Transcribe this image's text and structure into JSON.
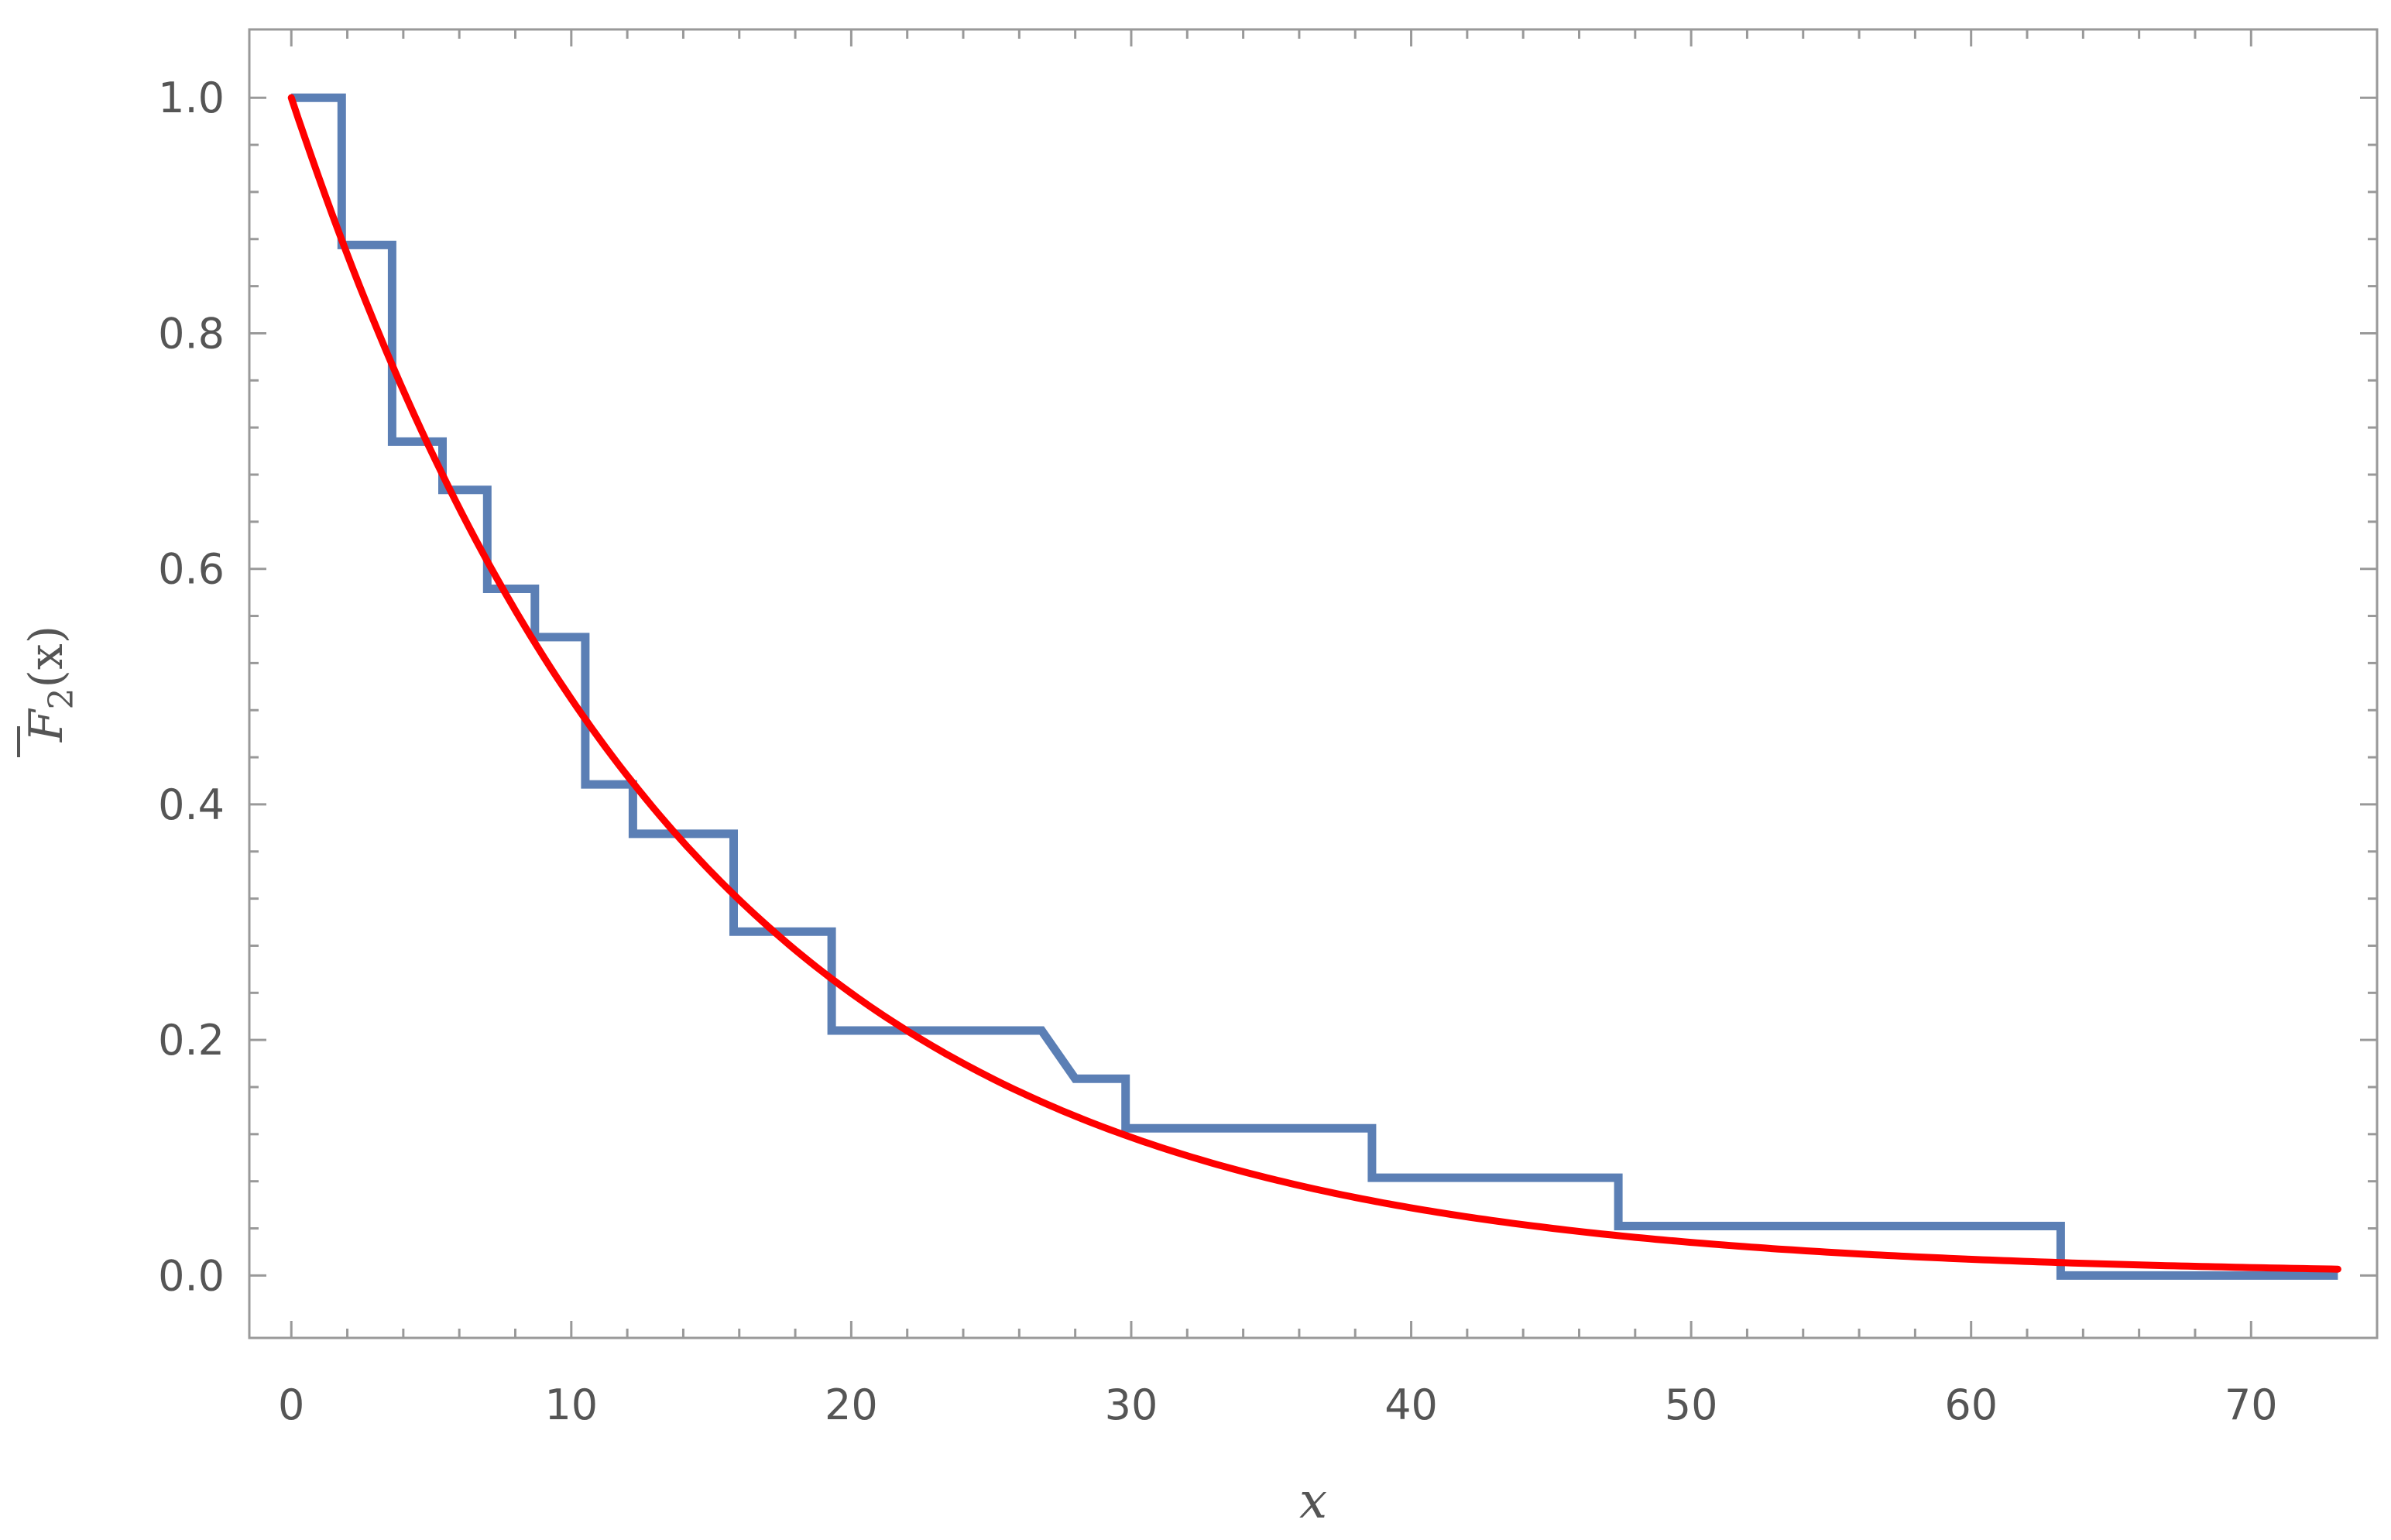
{
  "chart_data": {
    "type": "line",
    "xlabel": "x",
    "ylabel": {
      "symbol": "F",
      "subscript": "2",
      "argument": "(x)",
      "overline": true
    },
    "xlim": [
      -1.5,
      74.5
    ],
    "ylim": [
      -0.053,
      1.058
    ],
    "x_ticks": [
      0,
      10,
      20,
      30,
      40,
      50,
      60,
      70
    ],
    "x_tick_labels": [
      "0",
      "10",
      "20",
      "30",
      "40",
      "50",
      "60",
      "70"
    ],
    "y_ticks": [
      0.0,
      0.2,
      0.4,
      0.6,
      0.8,
      1.0
    ],
    "y_tick_labels": [
      "0.0",
      "0.2",
      "0.4",
      "0.6",
      "0.8",
      "1.0"
    ],
    "grid": false,
    "series": [
      {
        "style": "step",
        "color": "#5b7fb5",
        "points": [
          [
            0.0,
            1.0
          ],
          [
            1.8,
            1.0
          ],
          [
            1.8,
            0.875
          ],
          [
            3.6,
            0.875
          ],
          [
            3.6,
            0.708
          ],
          [
            5.4,
            0.708
          ],
          [
            5.4,
            0.667
          ],
          [
            7.0,
            0.667
          ],
          [
            7.0,
            0.583
          ],
          [
            8.7,
            0.583
          ],
          [
            8.7,
            0.542
          ],
          [
            10.5,
            0.542
          ],
          [
            10.5,
            0.417
          ],
          [
            12.2,
            0.417
          ],
          [
            12.2,
            0.375
          ],
          [
            15.8,
            0.375
          ],
          [
            15.8,
            0.292
          ],
          [
            19.3,
            0.292
          ],
          [
            19.3,
            0.208
          ],
          [
            26.8,
            0.208
          ],
          [
            28.0,
            0.167
          ],
          [
            29.8,
            0.167
          ],
          [
            29.8,
            0.125
          ],
          [
            38.6,
            0.125
          ],
          [
            38.6,
            0.083
          ],
          [
            47.4,
            0.083
          ],
          [
            47.4,
            0.042
          ],
          [
            63.2,
            0.042
          ],
          [
            63.2,
            0.0
          ],
          [
            73.1,
            0.0
          ]
        ]
      },
      {
        "style": "smooth",
        "color": "#ff0000",
        "function": "exp",
        "scale": 14.0,
        "x_range": [
          0.0,
          73.1
        ]
      }
    ]
  }
}
